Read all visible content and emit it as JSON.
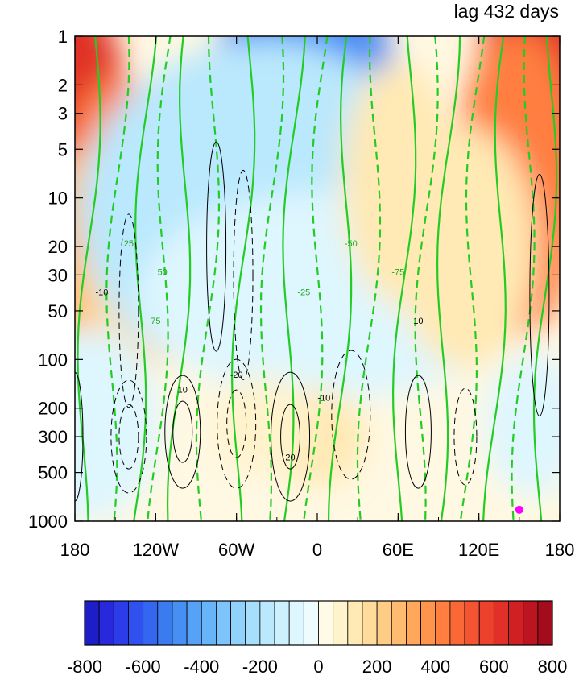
{
  "chart_data": {
    "type": "heatmap",
    "title": "lag 432 days",
    "x_tick_labels": [
      "180",
      "120W",
      "60W",
      "0",
      "60E",
      "120E",
      "180"
    ],
    "x_ticks_lon": [
      -180,
      -120,
      -60,
      0,
      60,
      120,
      180
    ],
    "y_tick_labels": [
      "1",
      "2",
      "3",
      "5",
      "10",
      "20",
      "30",
      "50",
      "100",
      "200",
      "300",
      "500",
      "1000"
    ],
    "y_ticks_hpa": [
      1,
      2,
      3,
      5,
      10,
      20,
      30,
      50,
      100,
      200,
      300,
      500,
      1000
    ],
    "x_range": [
      -180,
      180
    ],
    "y_range_hpa": [
      1000,
      1
    ],
    "y_scale": "log",
    "colorbar": {
      "levels": [
        -800,
        -750,
        -700,
        -650,
        -600,
        -550,
        -500,
        -450,
        -400,
        -350,
        -300,
        -250,
        -200,
        -150,
        -100,
        -50,
        0,
        50,
        100,
        150,
        200,
        250,
        300,
        350,
        400,
        450,
        500,
        550,
        600,
        650,
        700,
        750,
        800
      ],
      "labels": [
        "-800",
        "-600",
        "-400",
        "-200",
        "0",
        "200",
        "400",
        "600",
        "800"
      ],
      "label_values": [
        -800,
        -600,
        -400,
        -200,
        0,
        200,
        400,
        600,
        800
      ],
      "colors": [
        "#1e1ec8",
        "#2828dc",
        "#2c3ce8",
        "#3050f0",
        "#3466f0",
        "#3a7cf0",
        "#4690f4",
        "#56a2f6",
        "#68b4f8",
        "#7cc4fa",
        "#90d2fc",
        "#a6defc",
        "#bae8fd",
        "#ccf0fe",
        "#def6fe",
        "#effcff",
        "#fffbe6",
        "#fff3cc",
        "#ffe9b4",
        "#ffdc9c",
        "#ffcc86",
        "#ffbb70",
        "#ffa85c",
        "#ff944c",
        "#ff7e40",
        "#fb6838",
        "#f55432",
        "#ec412c",
        "#e03028",
        "#d02024",
        "#bc1420",
        "#a20c1c"
      ]
    },
    "black_contour_labels": [
      "-10",
      "10",
      "-20",
      "20",
      "-10",
      "10"
    ],
    "green_contour_labels": [
      "25",
      "50",
      "75",
      "-25",
      "-50",
      "-75"
    ],
    "marker": {
      "lon": 150,
      "p_hpa": 850,
      "color": "#ff00ff"
    }
  }
}
